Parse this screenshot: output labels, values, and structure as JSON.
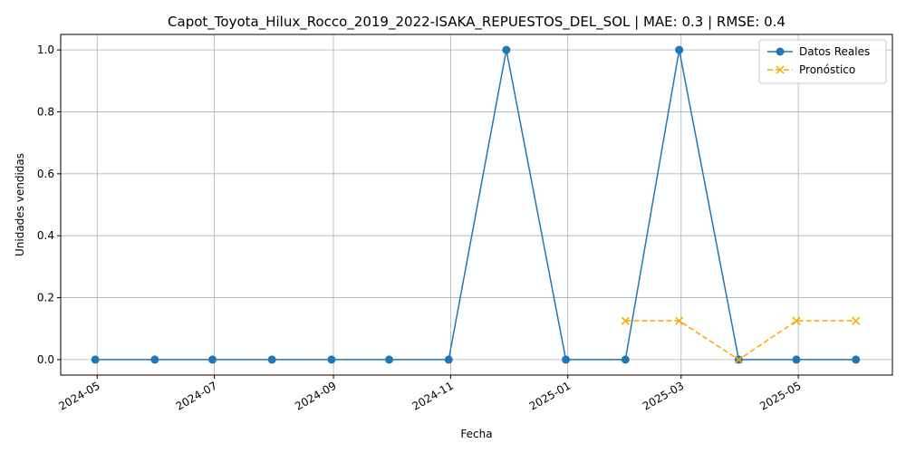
{
  "chart_data": {
    "type": "line",
    "title": "Capot_Toyota_Hilux_Rocco_2019_2022-ISAKA_REPUESTOS_DEL_SOL | MAE: 0.3 | RMSE: 0.4",
    "xlabel": "Fecha",
    "ylabel": "Unidades vendidas",
    "ylim": [
      -0.05,
      1.05
    ],
    "y_ticks": [
      0.0,
      0.2,
      0.4,
      0.6,
      0.8,
      1.0
    ],
    "y_tick_labels": [
      "0.0",
      "0.2",
      "0.4",
      "0.6",
      "0.8",
      "1.0"
    ],
    "x_ticks": [
      "2024-05-01",
      "2024-07-01",
      "2024-09-01",
      "2024-11-01",
      "2025-01-01",
      "2025-03-01",
      "2025-05-01"
    ],
    "x_tick_labels": [
      "2024-05",
      "2024-07",
      "2024-09",
      "2024-11",
      "2025-01",
      "2025-03",
      "2025-05"
    ],
    "grid": true,
    "legend_position": "top-right",
    "series": [
      {
        "name": "Datos Reales",
        "color": "#1f77b4",
        "style": "solid",
        "marker": "circle",
        "x": [
          "2024-04-30",
          "2024-05-31",
          "2024-06-30",
          "2024-07-31",
          "2024-08-31",
          "2024-09-30",
          "2024-10-31",
          "2024-11-30",
          "2024-12-31",
          "2025-01-31",
          "2025-02-28",
          "2025-03-31",
          "2025-04-30",
          "2025-05-31"
        ],
        "values": [
          0,
          0,
          0,
          0,
          0,
          0,
          0,
          1,
          0,
          0,
          1,
          0,
          0,
          0
        ]
      },
      {
        "name": "Pronóstico",
        "color": "#ffa500",
        "style": "dashed",
        "marker": "x",
        "x": [
          "2025-01-31",
          "2025-02-28",
          "2025-03-31",
          "2025-04-30",
          "2025-05-31"
        ],
        "values": [
          0.125,
          0.125,
          0.0,
          0.125,
          0.125
        ]
      }
    ]
  }
}
